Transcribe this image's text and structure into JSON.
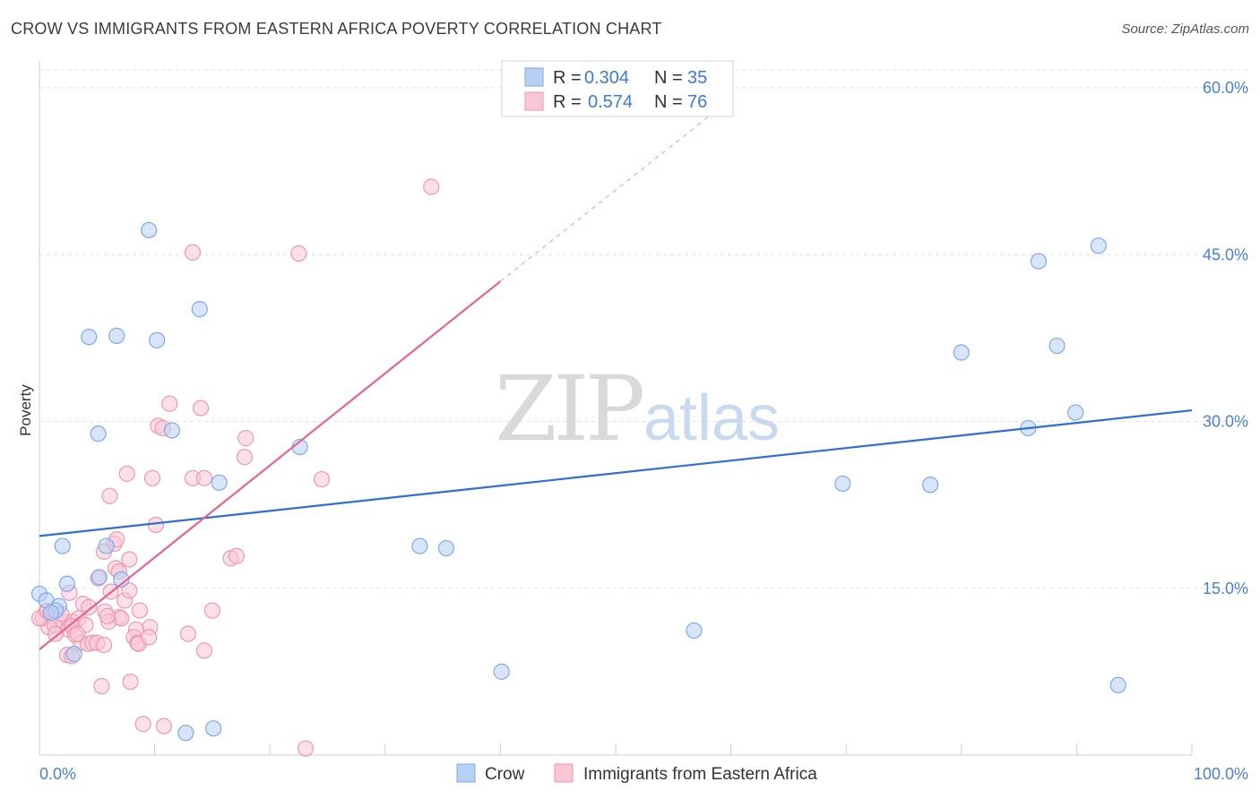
{
  "title": "CROW VS IMMIGRANTS FROM EASTERN AFRICA POVERTY CORRELATION CHART",
  "source": "Source: ZipAtlas.com",
  "watermark": {
    "zip": "ZIP",
    "atlas": "atlas"
  },
  "colors": {
    "blue": "#7eaae8",
    "blue_fill": "#b8d0f3",
    "blue_line": "#2e6fd0",
    "pink": "#ef98b3",
    "pink_fill": "#f8c6d5",
    "pink_line": "#e8638d",
    "axis_text": "#4a7fd4"
  },
  "legend": {
    "rows": [
      {
        "r_label": "R = ",
        "r_value": "0.304",
        "n_label": "N = ",
        "n_value": "35"
      },
      {
        "r_label": "R = ",
        "r_value": "0.574",
        "n_label": "N = ",
        "n_value": "76"
      }
    ]
  },
  "bottom_legend": [
    "Crow",
    "Immigrants from Eastern Africa"
  ],
  "chart_data": {
    "type": "scatter",
    "xlabel": "",
    "ylabel": "Poverty",
    "xlim": [
      0,
      100
    ],
    "ylim": [
      0,
      60
    ],
    "x_tick_labels": [
      "0.0%",
      "100.0%"
    ],
    "y_ticks": [
      15,
      30,
      45,
      60
    ],
    "y_tick_labels": [
      "15.0%",
      "30.0%",
      "45.0%",
      "60.0%"
    ],
    "grid": true,
    "series": [
      {
        "name": "Crow",
        "R": 0.304,
        "N": 35,
        "trend": {
          "x": [
            0,
            100
          ],
          "y": [
            19.7,
            31.0
          ],
          "dashed_from": null
        },
        "points": [
          [
            9.5,
            47.2
          ],
          [
            13.9,
            40.1
          ],
          [
            4.3,
            37.6
          ],
          [
            6.7,
            37.7
          ],
          [
            10.2,
            37.3
          ],
          [
            5.1,
            28.9
          ],
          [
            11.5,
            29.2
          ],
          [
            22.6,
            27.7
          ],
          [
            15.6,
            24.5
          ],
          [
            2.0,
            18.8
          ],
          [
            5.8,
            18.8
          ],
          [
            33.0,
            18.8
          ],
          [
            35.3,
            18.6
          ],
          [
            2.4,
            15.4
          ],
          [
            5.2,
            16.0
          ],
          [
            7.1,
            15.8
          ],
          [
            0.0,
            14.5
          ],
          [
            0.6,
            13.9
          ],
          [
            1.7,
            13.4
          ],
          [
            1.4,
            13.0
          ],
          [
            3.0,
            9.1
          ],
          [
            40.1,
            7.5
          ],
          [
            56.8,
            11.2
          ],
          [
            12.7,
            2.0
          ],
          [
            15.1,
            2.4
          ],
          [
            69.7,
            24.4
          ],
          [
            77.3,
            24.3
          ],
          [
            80.0,
            36.2
          ],
          [
            88.3,
            36.8
          ],
          [
            85.8,
            29.4
          ],
          [
            89.9,
            30.8
          ],
          [
            86.7,
            44.4
          ],
          [
            91.9,
            45.8
          ],
          [
            93.6,
            6.3
          ],
          [
            1.0,
            12.8
          ]
        ]
      },
      {
        "name": "Immigrants from Eastern Africa",
        "R": 0.574,
        "N": 76,
        "trend": {
          "x": [
            0,
            40.0,
            60.0
          ],
          "y": [
            9.5,
            42.6,
            59.0
          ],
          "dashed_from": 40.0
        },
        "points": [
          [
            34.0,
            51.1
          ],
          [
            13.3,
            45.2
          ],
          [
            22.5,
            45.1
          ],
          [
            11.3,
            31.6
          ],
          [
            14.0,
            31.2
          ],
          [
            10.3,
            29.6
          ],
          [
            10.7,
            29.4
          ],
          [
            17.9,
            28.5
          ],
          [
            17.8,
            26.8
          ],
          [
            7.6,
            25.3
          ],
          [
            9.8,
            24.9
          ],
          [
            13.3,
            24.9
          ],
          [
            14.3,
            24.9
          ],
          [
            24.5,
            24.8
          ],
          [
            6.1,
            23.3
          ],
          [
            10.1,
            20.7
          ],
          [
            6.5,
            19.0
          ],
          [
            6.7,
            19.4
          ],
          [
            5.6,
            18.3
          ],
          [
            7.8,
            17.6
          ],
          [
            16.6,
            17.7
          ],
          [
            17.1,
            17.9
          ],
          [
            6.6,
            16.8
          ],
          [
            6.9,
            16.5
          ],
          [
            5.1,
            15.9
          ],
          [
            2.6,
            14.6
          ],
          [
            6.2,
            14.7
          ],
          [
            3.8,
            13.6
          ],
          [
            4.3,
            13.3
          ],
          [
            7.4,
            13.9
          ],
          [
            5.7,
            12.9
          ],
          [
            8.7,
            13.0
          ],
          [
            15.0,
            13.0
          ],
          [
            0.3,
            12.3
          ],
          [
            0.6,
            12.9
          ],
          [
            1.0,
            12.5
          ],
          [
            1.5,
            12.1
          ],
          [
            2.1,
            12.0
          ],
          [
            2.9,
            12.0
          ],
          [
            3.4,
            12.3
          ],
          [
            0.8,
            11.5
          ],
          [
            1.3,
            11.7
          ],
          [
            2.5,
            11.3
          ],
          [
            2.8,
            11.6
          ],
          [
            6.9,
            12.4
          ],
          [
            7.1,
            12.3
          ],
          [
            8.4,
            11.3
          ],
          [
            9.6,
            11.5
          ],
          [
            1.4,
            10.9
          ],
          [
            3.1,
            10.8
          ],
          [
            3.6,
            10.1
          ],
          [
            4.2,
            10.0
          ],
          [
            4.6,
            10.1
          ],
          [
            5.0,
            10.1
          ],
          [
            5.6,
            9.9
          ],
          [
            8.2,
            10.6
          ],
          [
            8.5,
            10.1
          ],
          [
            8.6,
            10.0
          ],
          [
            9.5,
            10.6
          ],
          [
            12.9,
            10.9
          ],
          [
            2.4,
            9.0
          ],
          [
            2.8,
            8.9
          ],
          [
            14.3,
            9.4
          ],
          [
            5.4,
            6.2
          ],
          [
            7.9,
            6.6
          ],
          [
            9.0,
            2.8
          ],
          [
            10.8,
            2.6
          ],
          [
            23.1,
            0.6
          ],
          [
            0.0,
            12.3
          ],
          [
            0.7,
            13.0
          ],
          [
            1.9,
            12.7
          ],
          [
            4.0,
            11.7
          ],
          [
            6.0,
            12.0
          ],
          [
            3.3,
            10.9
          ],
          [
            5.9,
            12.5
          ],
          [
            7.8,
            14.8
          ]
        ]
      }
    ]
  }
}
